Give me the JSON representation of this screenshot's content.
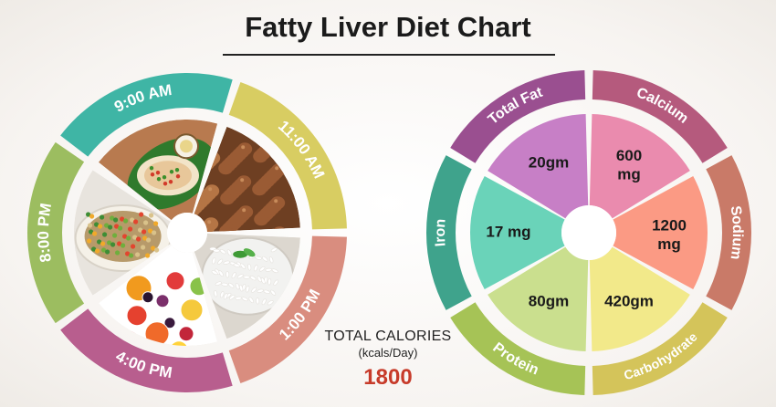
{
  "title": "Fatty Liver Diet Chart",
  "total_calories": {
    "label": "TOTAL CALORIES",
    "unit": "(kcals/Day)",
    "value": "1800"
  },
  "chart_data": [
    {
      "type": "pie",
      "title": "",
      "categories": [
        "9:00 AM",
        "11:00 AM",
        "1:00 PM",
        "4:00 PM",
        "8:00 PM"
      ],
      "values": [
        1,
        1,
        1,
        1,
        1
      ],
      "meals": [
        {
          "time": "9:00 AM",
          "ring_color": "#3fb5a5",
          "food": "dosa-breakfast-icon"
        },
        {
          "time": "11:00 AM",
          "ring_color": "#d8cd62",
          "food": "roasted-chickpeas-icon"
        },
        {
          "time": "1:00 PM",
          "ring_color": "#d98d7f",
          "food": "rice-bowl-icon"
        },
        {
          "time": "4:00 PM",
          "ring_color": "#b85e8e",
          "food": "fruit-salad-icon"
        },
        {
          "time": "8:00 PM",
          "ring_color": "#9cbd60",
          "food": "vegetable-quinoa-icon"
        }
      ]
    },
    {
      "type": "pie",
      "title": "",
      "categories": [
        "Total Fat",
        "Calcium",
        "Sodium",
        "Carbohydrate",
        "Protein",
        "Iron"
      ],
      "values": [
        1,
        1,
        1,
        1,
        1,
        1
      ],
      "slices": [
        {
          "nutrient": "Total Fat",
          "amount": "20gm",
          "ring_color": "#9a4f90",
          "fill": "#c77fc6"
        },
        {
          "nutrient": "Calcium",
          "amount": "600 mg",
          "ring_color": "#b55a7d",
          "fill": "#ea8bae"
        },
        {
          "nutrient": "Sodium",
          "amount": "1200 mg",
          "ring_color": "#c97a68",
          "fill": "#fb9a84"
        },
        {
          "nutrient": "Carbohydrate",
          "amount": "420gm",
          "ring_color": "#d4c45a",
          "fill": "#f2e98a"
        },
        {
          "nutrient": "Protein",
          "amount": "80gm",
          "ring_color": "#a6c356",
          "fill": "#cadf8e"
        },
        {
          "nutrient": "Iron",
          "amount": "17 mg",
          "ring_color": "#3fa38c",
          "fill": "#6ad3b9"
        }
      ]
    }
  ]
}
